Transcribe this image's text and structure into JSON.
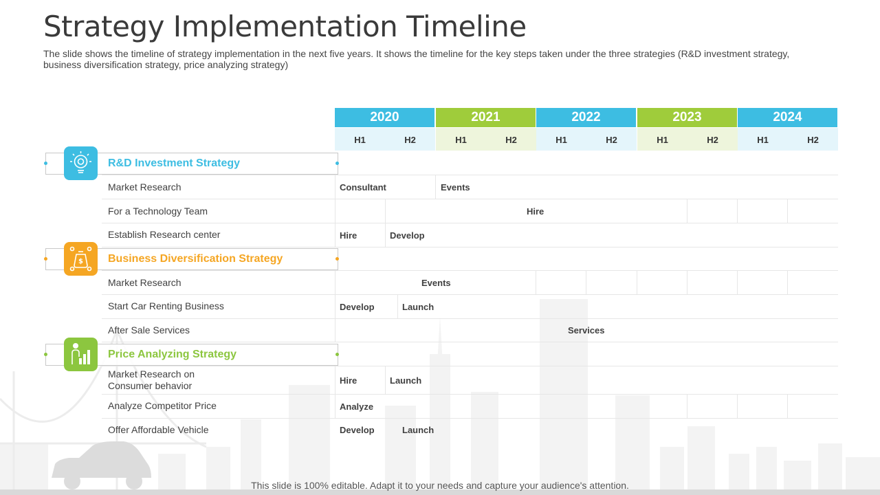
{
  "slide": {
    "title": "Strategy Implementation Timeline",
    "subtitle": "The slide shows the timeline of strategy implementation in the next five years. It shows the timeline for the key steps taken under the three strategies (R&D investment strategy, business diversification strategy, price analyzing strategy)",
    "footer_note": "This slide is 100% editable. Adapt it to your needs and capture your audience's attention."
  },
  "timeline": {
    "years": [
      "2020",
      "2021",
      "2022",
      "2023",
      "2024"
    ],
    "halves": [
      "H1",
      "H2",
      "H1",
      "H2",
      "H1",
      "H2",
      "H1",
      "H2",
      "H1",
      "H2"
    ]
  },
  "strategies": [
    {
      "name": "R&D Investment Strategy",
      "color": "#3dbde2",
      "icon": "lightbulb-gear-icon",
      "tasks": [
        {
          "label": "Market Research",
          "cells": [
            "Consultant",
            "Events"
          ]
        },
        {
          "label": "For a Technology Team",
          "cells": [
            "Hire"
          ]
        },
        {
          "label": "Establish Research center",
          "cells": [
            "Hire",
            "Develop"
          ]
        }
      ]
    },
    {
      "name": "Business Diversification Strategy",
      "color": "#f5a623",
      "icon": "money-bag-icon",
      "tasks": [
        {
          "label": "Market Research",
          "cells": [
            "Events"
          ]
        },
        {
          "label": "Start Car Renting Business",
          "cells": [
            "Develop",
            "Launch"
          ]
        },
        {
          "label": "After Sale Services",
          "cells": [
            "Services"
          ]
        }
      ]
    },
    {
      "name": "Price Analyzing Strategy",
      "color": "#8cc63f",
      "icon": "chart-person-icon",
      "tasks": [
        {
          "label_line1": "Market Research on",
          "label_line2": "Consumer behavior",
          "cells": [
            "Hire",
            "Launch"
          ]
        },
        {
          "label": "Analyze Competitor Price",
          "cells": [
            "Analyze"
          ]
        },
        {
          "label": "Offer Affordable Vehicle",
          "cells": [
            "Develop",
            "Launch"
          ]
        }
      ]
    }
  ]
}
